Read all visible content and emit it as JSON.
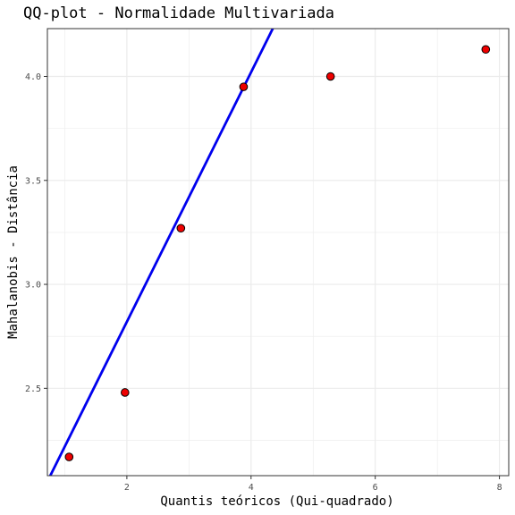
{
  "chart_data": {
    "type": "scatter",
    "title": "QQ-plot - Normalidade Multivariada",
    "xlabel": "Quantis teóricos (Qui-quadrado)",
    "ylabel": "Mahalanobis -  Distância",
    "xlim": [
      0.72,
      8.15
    ],
    "ylim": [
      2.08,
      4.23
    ],
    "x_ticks": [
      2,
      4,
      6,
      8
    ],
    "y_ticks": [
      2.5,
      3.0,
      3.5,
      4.0
    ],
    "y_tick_labels": [
      "2.5",
      "3.0",
      "3.5",
      "4.0"
    ],
    "grid": true,
    "points": [
      {
        "x": 1.07,
        "y": 2.17
      },
      {
        "x": 1.97,
        "y": 2.48
      },
      {
        "x": 2.87,
        "y": 3.27
      },
      {
        "x": 3.88,
        "y": 3.95
      },
      {
        "x": 5.28,
        "y": 4.0
      },
      {
        "x": 7.78,
        "y": 4.13
      }
    ],
    "reference_line": {
      "intercept": 1.62,
      "slope": 0.6,
      "color": "#0000ee"
    },
    "point_fill": "#ee0000",
    "point_stroke": "#000000",
    "grid_color": "#ebebeb",
    "panel_border_color": "#333333"
  }
}
